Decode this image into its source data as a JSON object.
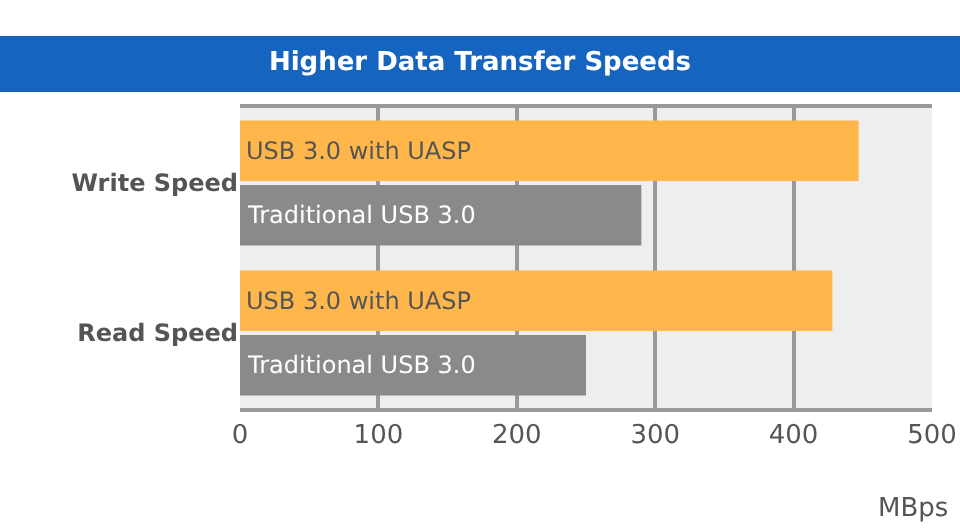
{
  "chart_data": {
    "type": "bar",
    "orientation": "horizontal",
    "title": "Higher Data Transfer Speeds",
    "xlabel": "MBps",
    "categories": [
      "Write Speed",
      "Read Speed"
    ],
    "series": [
      {
        "name": "USB 3.0 with UASP",
        "color": "#ffb64a",
        "values": [
          447,
          428
        ]
      },
      {
        "name": "Traditional USB 3.0",
        "color": "#8a8a8a",
        "values": [
          290,
          250
        ]
      }
    ],
    "xlim": [
      0,
      500
    ],
    "xticks": [
      0,
      100,
      200,
      300,
      400,
      500
    ],
    "grid": "x",
    "legend": false
  }
}
